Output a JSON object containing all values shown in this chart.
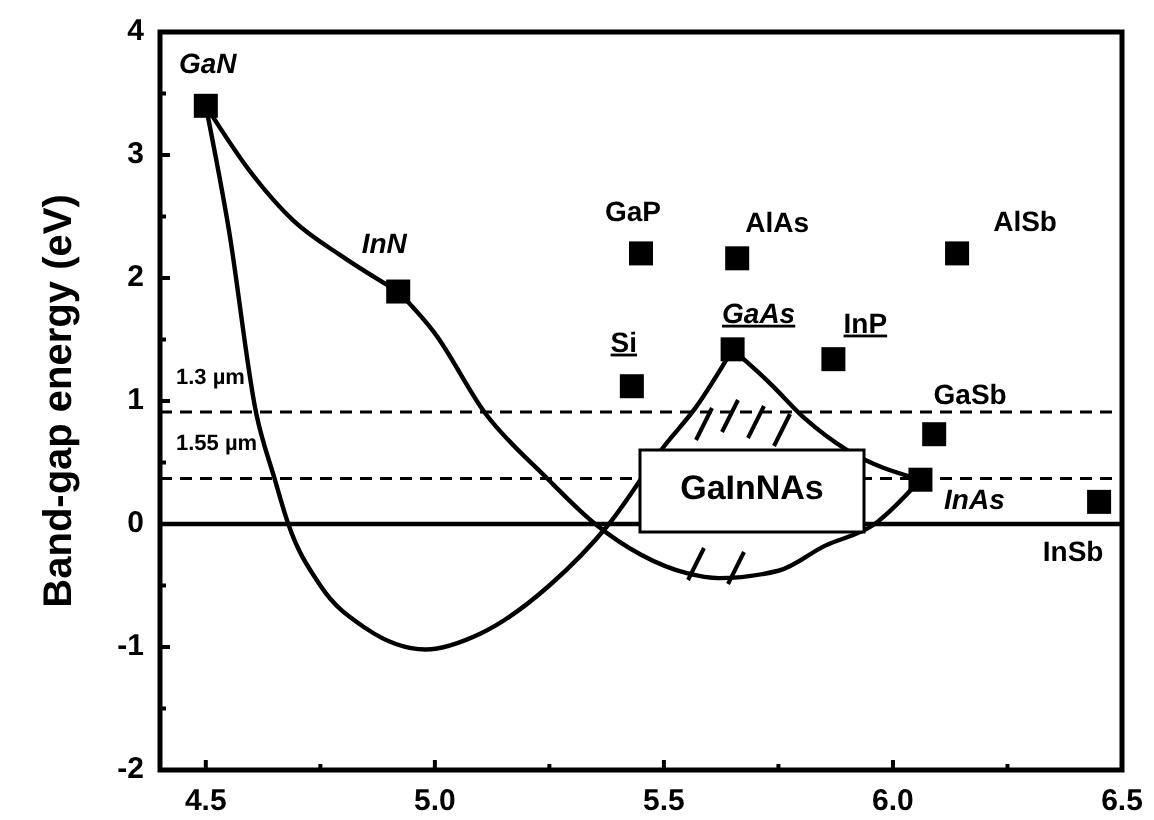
{
  "chart_data": {
    "type": "scatter",
    "ylabel": "Band-gap energy (eV)",
    "xlim": [
      4.4,
      6.5
    ],
    "ylim": [
      -2,
      4
    ],
    "xticks": [
      4.5,
      {
        "value": 4.75,
        "label": null
      },
      {
        "value": 5,
        "label": "5.0"
      },
      {
        "value": 5.25,
        "label": null
      },
      5.5,
      {
        "value": 5.75,
        "label": null
      },
      {
        "value": 6,
        "label": "6.0"
      },
      {
        "value": 6.25,
        "label": null
      },
      6.5
    ],
    "yticks": [
      -2,
      {
        "value": -1.5,
        "label": null
      },
      -1,
      {
        "value": -0.5,
        "label": null
      },
      0,
      {
        "value": 0.5,
        "label": null
      },
      1,
      {
        "value": 1.5,
        "label": null
      },
      2,
      {
        "value": 2.5,
        "label": null
      },
      3,
      {
        "value": 3.5,
        "label": null
      },
      4
    ],
    "marker": "square",
    "grid": false,
    "series": [
      {
        "name": "GaN",
        "color": "#000000",
        "x": [
          4.5
        ],
        "values": [
          3.4
        ]
      },
      {
        "name": "InN",
        "color": "#000000",
        "x": [
          4.92
        ],
        "values": [
          1.89
        ]
      },
      {
        "name": "GaP",
        "color": "#000000",
        "x": [
          5.45
        ],
        "values": [
          2.2
        ]
      },
      {
        "name": "AlAs",
        "color": "#000000",
        "x": [
          5.66
        ],
        "values": [
          2.16
        ]
      },
      {
        "name": "AlSb",
        "color": "#000000",
        "x": [
          6.14
        ],
        "values": [
          2.2
        ]
      },
      {
        "name": "Si",
        "color": "#000000",
        "x": [
          5.43
        ],
        "values": [
          1.12
        ]
      },
      {
        "name": "GaAs",
        "color": "#000000",
        "x": [
          5.65
        ],
        "values": [
          1.42
        ]
      },
      {
        "name": "InP",
        "color": "#000000",
        "x": [
          5.87
        ],
        "values": [
          1.34
        ]
      },
      {
        "name": "GaSb",
        "color": "#000000",
        "x": [
          6.09
        ],
        "values": [
          0.73
        ]
      },
      {
        "name": "InAs",
        "color": "#000000",
        "x": [
          6.06
        ],
        "values": [
          0.36
        ]
      },
      {
        "name": "InSb",
        "color": "#000000",
        "x": [
          6.45
        ],
        "values": [
          0.18
        ]
      },
      {
        "type": "line",
        "color": "#000000",
        "marker": "none",
        "x": [
          4.5,
          4.6,
          4.69,
          4.8,
          4.92
        ],
        "values": [
          3.4,
          2.85,
          2.47,
          2.17,
          1.89
        ]
      },
      {
        "type": "line",
        "color": "#000000",
        "marker": "none",
        "x": [
          4.92,
          5.0,
          5.11,
          5.24,
          5.35,
          5.45,
          5.55,
          5.62,
          5.75,
          5.85,
          5.96,
          6.06
        ],
        "values": [
          1.89,
          1.55,
          0.9,
          0.39,
          0,
          -0.25,
          -0.4,
          -0.44,
          -0.38,
          -0.18,
          0,
          0.36
        ]
      },
      {
        "type": "line",
        "color": "#000000",
        "marker": "none",
        "x": [
          4.5,
          4.55,
          4.61,
          4.65,
          4.68,
          4.75,
          4.85,
          4.98,
          5.1,
          5.25,
          5.38,
          5.5,
          5.57,
          5.65
        ],
        "values": [
          3.4,
          2.4,
          0.9,
          0.37,
          0,
          -0.5,
          -0.85,
          -1.02,
          -0.89,
          -0.5,
          0,
          0.63,
          0.95,
          1.42
        ]
      },
      {
        "type": "line",
        "color": "#000000",
        "marker": "none",
        "x": [
          5.65,
          5.73,
          5.81,
          5.9,
          6.06
        ],
        "values": [
          1.42,
          1.15,
          0.85,
          0.6,
          0.36
        ]
      }
    ],
    "ref_lines": [
      {
        "axis": "y",
        "value": 0.91,
        "label": "1.3 µm",
        "line_style": "dashed",
        "color": "#000000"
      },
      {
        "axis": "y",
        "value": 0.37,
        "label": "1.55 µm",
        "line_style": "dashed",
        "color": "#000000"
      },
      {
        "axis": "y",
        "value": 0,
        "line_style": "solid",
        "color": "#000000"
      }
    ],
    "annotations": [
      "GaInNAs"
    ]
  }
}
